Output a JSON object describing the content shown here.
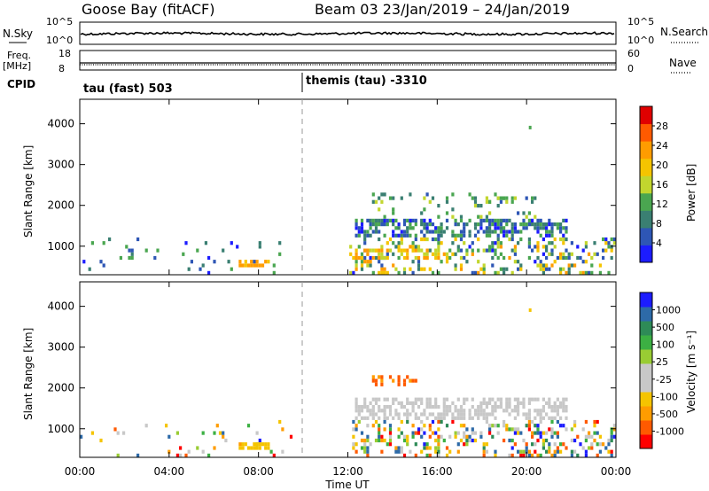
{
  "header": {
    "title": "Goose Bay (fitACF)",
    "beam_info": "Beam 03  23/Jan/2019 – 24/Jan/2019"
  },
  "strips": {
    "nsky_label": "N.Sky",
    "nsearch_label": "N.Search",
    "freq_label_1": "Freq.",
    "freq_label_2": "[MHz]",
    "nave_label": "Nave",
    "cpid_label": "CPID",
    "noise_ticks": [
      "10^5",
      "10^0"
    ],
    "freq_ticks": [
      "18",
      "8"
    ],
    "nave_ticks": [
      "60",
      "0"
    ],
    "cpid_segments": [
      {
        "start_hour": 0,
        "label": "tau (fast) 503"
      },
      {
        "start_hour": 10,
        "label": "themis (tau) -3310"
      }
    ]
  },
  "colors": {
    "power": [
      "#1c1cff",
      "#2e56b5",
      "#3a7f72",
      "#4aa650",
      "#c2d62e",
      "#f5c400",
      "#ff9c00",
      "#ff5a00",
      "#e00000"
    ],
    "velocity": [
      "#ff0000",
      "#ff5a00",
      "#ff9c00",
      "#f5c400",
      "#c8c8c8",
      "#c8c8c8",
      "#99cc33",
      "#3cb043",
      "#2e8b57",
      "#2d6aa8",
      "#1c1cff"
    ]
  },
  "chart_data": [
    {
      "type": "heatmap",
      "panel": "power",
      "ylabel": "Slant Range [km]",
      "yticks": [
        "1000",
        "2000",
        "3000",
        "4000"
      ],
      "ylim": [
        300,
        4600
      ],
      "xlim": [
        0,
        24
      ],
      "colorbar_label": "Power [dB]",
      "colorbar_ticks": [
        "4",
        "8",
        "12",
        "16",
        "20",
        "24",
        "28"
      ],
      "colorbar_range": [
        0,
        31
      ],
      "echo_regions": [
        {
          "t0": 0,
          "t1": 9.5,
          "r0": 300,
          "r1": 1200,
          "density": 0.045,
          "min": 2,
          "max": 14
        },
        {
          "t0": 7.0,
          "t1": 8.5,
          "r0": 480,
          "r1": 620,
          "density": 0.75,
          "min": 19,
          "max": 24
        },
        {
          "t0": 12.3,
          "t1": 21.8,
          "r0": 1200,
          "r1": 1600,
          "density": 0.55,
          "min": 2,
          "max": 13
        },
        {
          "t0": 13.0,
          "t1": 20.5,
          "r0": 1600,
          "r1": 2300,
          "density": 0.12,
          "min": 6,
          "max": 17
        },
        {
          "t0": 12.0,
          "t1": 24,
          "r0": 300,
          "r1": 1150,
          "density": 0.28,
          "min": 2,
          "max": 22
        },
        {
          "t0": 12.3,
          "t1": 16.0,
          "r0": 650,
          "r1": 900,
          "density": 0.5,
          "min": 14,
          "max": 24
        },
        {
          "t0": 18.0,
          "t1": 19.5,
          "r0": 2000,
          "r1": 2200,
          "density": 0.4,
          "min": 10,
          "max": 18
        }
      ]
    },
    {
      "type": "heatmap",
      "panel": "velocity",
      "ylabel": "Slant Range [km]",
      "yticks": [
        "1000",
        "2000",
        "3000",
        "4000"
      ],
      "ylim": [
        300,
        4600
      ],
      "xlim": [
        0,
        24
      ],
      "xlabel": "Time UT",
      "xticks": [
        "00:00",
        "04:00",
        "08:00",
        "12:00",
        "16:00",
        "20:00",
        "00:00"
      ],
      "colorbar_label": "Velocity [m s⁻¹]",
      "colorbar_ticks": [
        "-1000",
        "-500",
        "-100",
        "-25",
        "25",
        "100",
        "500",
        "1000"
      ],
      "echo_regions": [
        {
          "t0": 0,
          "t1": 9.5,
          "r0": 300,
          "r1": 1200,
          "density": 0.045,
          "min": 0,
          "max": 10
        },
        {
          "t0": 7.0,
          "t1": 8.5,
          "r0": 480,
          "r1": 620,
          "density": 0.75,
          "min": 3,
          "max": 3
        },
        {
          "t0": 12.3,
          "t1": 21.8,
          "r0": 1200,
          "r1": 1750,
          "density": 0.55,
          "min": 4,
          "max": 5
        },
        {
          "t0": 13.0,
          "t1": 15.0,
          "r0": 1950,
          "r1": 2250,
          "density": 0.45,
          "min": 1,
          "max": 2
        },
        {
          "t0": 12.0,
          "t1": 24,
          "r0": 300,
          "r1": 1150,
          "density": 0.28,
          "min": 0,
          "max": 10
        }
      ]
    }
  ]
}
